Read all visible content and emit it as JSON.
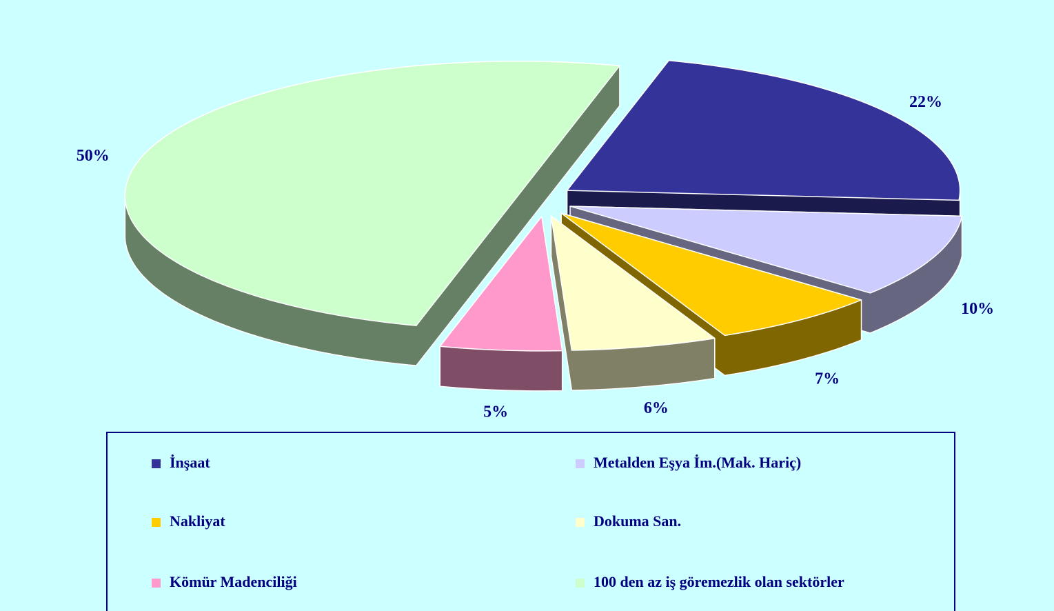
{
  "chart_data": {
    "type": "pie",
    "categories": [
      "İnşaat",
      "Metalden Eşya İm.(Mak. Hariç)",
      "Nakliyat",
      "Dokuma San.",
      "Kömür Madenciliği",
      "100 den az iş göremezlik olan sektörler"
    ],
    "values": [
      22,
      10,
      7,
      6,
      5,
      50
    ],
    "value_labels": [
      "22%",
      "10%",
      "7%",
      "6%",
      "5%",
      "50%"
    ],
    "colors": [
      "#333399",
      "#ccccff",
      "#ffcc00",
      "#ffffcc",
      "#ff99cc",
      "#ccffcc"
    ]
  }
}
